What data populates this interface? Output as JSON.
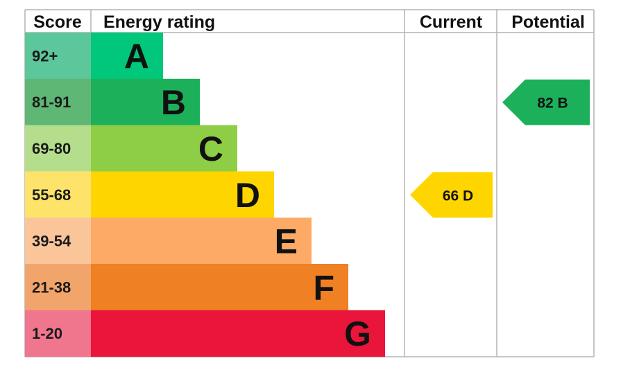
{
  "headers": {
    "score": "Score",
    "rating": "Energy rating",
    "current": "Current",
    "potential": "Potential"
  },
  "bands": [
    {
      "range": "92+",
      "letter": "A",
      "color": "#00c77a",
      "score_color": "#5cc79a"
    },
    {
      "range": "81-91",
      "letter": "B",
      "color": "#1cb05a",
      "score_color": "#5fb776"
    },
    {
      "range": "69-80",
      "letter": "C",
      "color": "#8dce46",
      "score_color": "#b4de8c"
    },
    {
      "range": "55-68",
      "letter": "D",
      "color": "#ffd500",
      "score_color": "#fde36a"
    },
    {
      "range": "39-54",
      "letter": "E",
      "color": "#fcaa65",
      "score_color": "#fbc59a"
    },
    {
      "range": "21-38",
      "letter": "F",
      "color": "#ef8023",
      "score_color": "#f2a56b"
    },
    {
      "range": "1-20",
      "letter": "G",
      "color": "#e9153b",
      "score_color": "#f0768e"
    }
  ],
  "current": {
    "value": 66,
    "letter": "D",
    "label": "66 D",
    "color": "#ffd500"
  },
  "potential": {
    "value": 82,
    "letter": "B",
    "label": "82 B",
    "color": "#1cb05a"
  },
  "chart_data": {
    "type": "bar",
    "categories": [
      "92+",
      "81-91",
      "69-80",
      "55-68",
      "39-54",
      "21-38",
      "1-20"
    ],
    "series": [
      {
        "name": "Energy rating",
        "values": [
          "A",
          "B",
          "C",
          "D",
          "E",
          "F",
          "G"
        ]
      }
    ],
    "current": 66,
    "potential": 82
  }
}
